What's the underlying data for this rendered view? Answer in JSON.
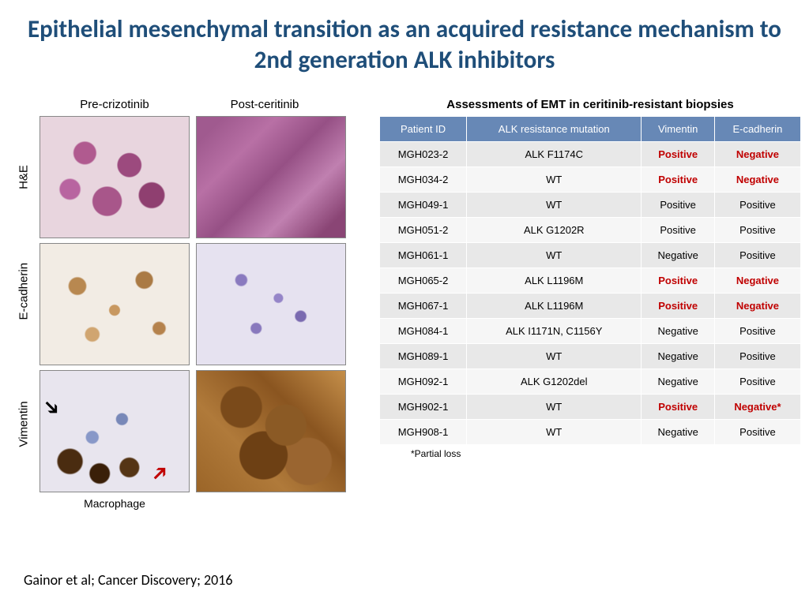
{
  "title": "Epithelial mesenchymal transition as an acquired resistance mechanism to 2nd generation ALK inhibitors",
  "citation": "Gainor et al; Cancer Discovery; 2016",
  "panel": {
    "col_headers": [
      "Pre-crizotinib",
      "Post-ceritinib"
    ],
    "row_labels": [
      "H&E",
      "E-cadherin",
      "Vimentin"
    ],
    "macrophage_label": "Macrophage"
  },
  "table": {
    "title": "Assessments of EMT in ceritinib-resistant biopsies",
    "columns": [
      "Patient ID",
      "ALK resistance mutation",
      "Vimentin",
      "E-cadherin"
    ],
    "rows": [
      {
        "id": "MGH023-2",
        "mut": "ALK F1174C",
        "vim": {
          "text": "Positive",
          "style": "bold-red"
        },
        "ecad": {
          "text": "Negative",
          "style": "bold-red"
        }
      },
      {
        "id": "MGH034-2",
        "mut": "WT",
        "vim": {
          "text": "Positive",
          "style": "bold-red"
        },
        "ecad": {
          "text": "Negative",
          "style": "bold-red"
        }
      },
      {
        "id": "MGH049-1",
        "mut": "WT",
        "vim": {
          "text": "Positive",
          "style": "plain"
        },
        "ecad": {
          "text": "Positive",
          "style": "plain"
        }
      },
      {
        "id": "MGH051-2",
        "mut": "ALK G1202R",
        "vim": {
          "text": "Positive",
          "style": "plain"
        },
        "ecad": {
          "text": "Positive",
          "style": "plain"
        }
      },
      {
        "id": "MGH061-1",
        "mut": "WT",
        "vim": {
          "text": "Negative",
          "style": "plain"
        },
        "ecad": {
          "text": "Positive",
          "style": "plain"
        }
      },
      {
        "id": "MGH065-2",
        "mut": "ALK L1196M",
        "vim": {
          "text": "Positive",
          "style": "bold-red"
        },
        "ecad": {
          "text": "Negative",
          "style": "bold-red"
        }
      },
      {
        "id": "MGH067-1",
        "mut": "ALK L1196M",
        "vim": {
          "text": "Positive",
          "style": "bold-red"
        },
        "ecad": {
          "text": "Negative",
          "style": "bold-red"
        }
      },
      {
        "id": "MGH084-1",
        "mut": "ALK I1171N, C1156Y",
        "vim": {
          "text": "Negative",
          "style": "plain"
        },
        "ecad": {
          "text": "Positive",
          "style": "plain"
        }
      },
      {
        "id": "MGH089-1",
        "mut": "WT",
        "vim": {
          "text": "Negative",
          "style": "plain"
        },
        "ecad": {
          "text": "Positive",
          "style": "plain"
        }
      },
      {
        "id": "MGH092-1",
        "mut": "ALK G1202del",
        "vim": {
          "text": "Negative",
          "style": "plain"
        },
        "ecad": {
          "text": "Positive",
          "style": "plain"
        }
      },
      {
        "id": "MGH902-1",
        "mut": "WT",
        "vim": {
          "text": "Positive",
          "style": "bold-red"
        },
        "ecad": {
          "text": "Negative*",
          "style": "bold-red"
        }
      },
      {
        "id": "MGH908-1",
        "mut": "WT",
        "vim": {
          "text": "Negative",
          "style": "plain"
        },
        "ecad": {
          "text": "Positive",
          "style": "plain"
        }
      }
    ],
    "footnote": "*Partial loss"
  },
  "colors": {
    "title": "#1f4e79",
    "table_header_bg": "#6788b6",
    "row_odd_bg": "#e8e8e8",
    "row_even_bg": "#f6f6f6",
    "highlight_red": "#c00000"
  }
}
